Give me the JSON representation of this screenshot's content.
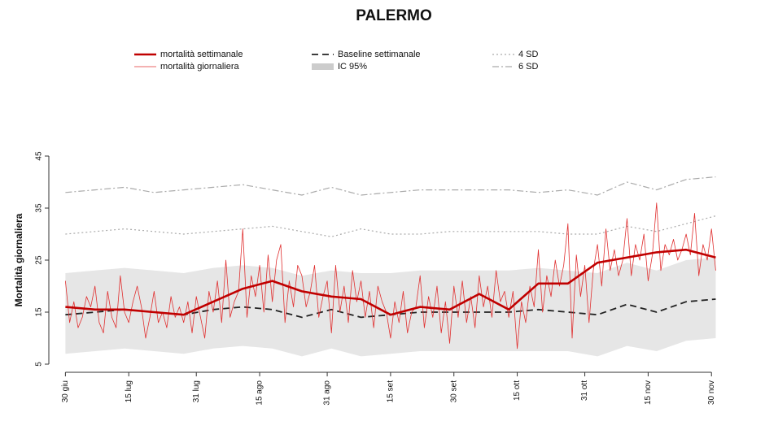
{
  "chart_data": {
    "type": "line",
    "title": "PALERMO",
    "y_label": "Mortalità giornaliera",
    "xlim": [
      -2,
      157
    ],
    "ylim": [
      5,
      45
    ],
    "xticks": [
      {
        "value": 0,
        "label": "30 giu"
      },
      {
        "value": 15,
        "label": "15 lug"
      },
      {
        "value": 31,
        "label": "31 lug"
      },
      {
        "value": 46,
        "label": "15 ago"
      },
      {
        "value": 62,
        "label": "31 ago"
      },
      {
        "value": 77,
        "label": "15 set"
      },
      {
        "value": 92,
        "label": "30 set"
      },
      {
        "value": 107,
        "label": "15 ott"
      },
      {
        "value": 123,
        "label": "31 ott"
      },
      {
        "value": 138,
        "label": "15 nov"
      },
      {
        "value": 153,
        "label": "30 nov"
      }
    ],
    "yticks": [
      5,
      15,
      25,
      35,
      45
    ],
    "series": [
      {
        "name": "mortalità settimanale",
        "color": "#c00000",
        "style": "solid",
        "width": 2.6,
        "x": [
          0,
          7,
          14,
          21,
          28,
          35,
          42,
          49,
          56,
          63,
          70,
          77,
          84,
          91,
          98,
          105,
          112,
          119,
          126,
          133,
          140,
          147,
          154
        ],
        "values": [
          16,
          15.5,
          15.5,
          15,
          14.5,
          17,
          19.5,
          21,
          19,
          18,
          17.5,
          14.5,
          16,
          15.5,
          18.5,
          15.5,
          20.5,
          20.5,
          24.5,
          25.5,
          26.5,
          27,
          25.5
        ]
      },
      {
        "name": "mortalità giornaliera",
        "color": "#e03030",
        "style": "solid",
        "width": 0.8,
        "x": [
          0,
          1,
          2,
          3,
          4,
          5,
          6,
          7,
          8,
          9,
          10,
          11,
          12,
          13,
          14,
          15,
          16,
          17,
          18,
          19,
          20,
          21,
          22,
          23,
          24,
          25,
          26,
          27,
          28,
          29,
          30,
          31,
          32,
          33,
          34,
          35,
          36,
          37,
          38,
          39,
          40,
          41,
          42,
          43,
          44,
          45,
          46,
          47,
          48,
          49,
          50,
          51,
          52,
          53,
          54,
          55,
          56,
          57,
          58,
          59,
          60,
          61,
          62,
          63,
          64,
          65,
          66,
          67,
          68,
          69,
          70,
          71,
          72,
          73,
          74,
          75,
          76,
          77,
          78,
          79,
          80,
          81,
          82,
          83,
          84,
          85,
          86,
          87,
          88,
          89,
          90,
          91,
          92,
          93,
          94,
          95,
          96,
          97,
          98,
          99,
          100,
          101,
          102,
          103,
          104,
          105,
          106,
          107,
          108,
          109,
          110,
          111,
          112,
          113,
          114,
          115,
          116,
          117,
          118,
          119,
          120,
          121,
          122,
          123,
          124,
          125,
          126,
          127,
          128,
          129,
          130,
          131,
          132,
          133,
          134,
          135,
          136,
          137,
          138,
          139,
          140,
          141,
          142,
          143,
          144,
          145,
          146,
          147,
          148,
          149,
          150,
          151,
          152,
          153,
          154
        ],
        "values": [
          21,
          13,
          17,
          12,
          14,
          18,
          16,
          20,
          13,
          11,
          19,
          14,
          12,
          22,
          15,
          13,
          17,
          20,
          16,
          10,
          14,
          19,
          13,
          15,
          12,
          18,
          14,
          16,
          13,
          17,
          11,
          18,
          14,
          10,
          19,
          15,
          21,
          13,
          25,
          14,
          17,
          19,
          31,
          14,
          22,
          18,
          24,
          15,
          26,
          17,
          25,
          28,
          13,
          21,
          16,
          24,
          22,
          16,
          19,
          24,
          14,
          18,
          21,
          11,
          24,
          15,
          20,
          13,
          23,
          17,
          21,
          14,
          19,
          12,
          20,
          17,
          15,
          10,
          17,
          13,
          19,
          11,
          15,
          16,
          22,
          12,
          18,
          14,
          20,
          11,
          17,
          9,
          20,
          14,
          21,
          13,
          18,
          12,
          22,
          16,
          20,
          14,
          23,
          17,
          19,
          14,
          19,
          8,
          17,
          13,
          20,
          16,
          27,
          15,
          22,
          18,
          25,
          20,
          24,
          32,
          10,
          26,
          18,
          24,
          13,
          23,
          28,
          20,
          31,
          23,
          27,
          22,
          25,
          33,
          22,
          28,
          25,
          30,
          21,
          26,
          36,
          23,
          28,
          26,
          29,
          25,
          27,
          30,
          26,
          34,
          22,
          28,
          25,
          31,
          23
        ]
      },
      {
        "name": "Baseline settimanale",
        "color": "#222222",
        "style": "dashed",
        "width": 1.8,
        "x": [
          0,
          7,
          14,
          21,
          28,
          35,
          42,
          49,
          56,
          63,
          70,
          77,
          84,
          91,
          98,
          105,
          112,
          119,
          126,
          133,
          140,
          147,
          154
        ],
        "values": [
          14.5,
          15,
          15.5,
          15,
          14.5,
          15.5,
          16,
          15.5,
          14,
          15.5,
          14,
          14.5,
          15,
          15,
          15,
          15,
          15.5,
          15,
          14.5,
          16.5,
          15,
          17,
          17.5
        ]
      },
      {
        "name": "IC 95%",
        "color": "#e6e6e6",
        "style": "band",
        "x": [
          0,
          7,
          14,
          21,
          28,
          35,
          42,
          49,
          56,
          63,
          70,
          77,
          84,
          91,
          98,
          105,
          112,
          119,
          126,
          133,
          140,
          147,
          154
        ],
        "upper": [
          22.5,
          23,
          23.5,
          23,
          22.5,
          23.5,
          24,
          23.5,
          22,
          23,
          22.5,
          22.5,
          23,
          23,
          23,
          23,
          23.5,
          23,
          22.5,
          24.5,
          23,
          25,
          25.5
        ],
        "lower": [
          7,
          7.5,
          8,
          7.5,
          7,
          8,
          8.5,
          8,
          6.5,
          8,
          6.5,
          7,
          7.5,
          7.5,
          7.5,
          7.5,
          7.5,
          7.5,
          6.5,
          8.5,
          7.5,
          9.5,
          10
        ]
      },
      {
        "name": "4 SD",
        "color": "#aaaaaa",
        "style": "dotted",
        "width": 1.2,
        "x": [
          0,
          7,
          14,
          21,
          28,
          35,
          42,
          49,
          56,
          63,
          70,
          77,
          84,
          91,
          98,
          105,
          112,
          119,
          126,
          133,
          140,
          147,
          154
        ],
        "values": [
          30,
          30.5,
          31,
          30.5,
          30,
          30.5,
          31,
          31.5,
          30.5,
          29.5,
          31,
          30,
          30,
          30.5,
          30.5,
          30.5,
          30.5,
          30,
          30,
          31.5,
          30.5,
          32,
          33.5
        ]
      },
      {
        "name": "6 SD",
        "color": "#aaaaaa",
        "style": "dotdash",
        "width": 1.2,
        "x": [
          0,
          7,
          14,
          21,
          28,
          35,
          42,
          49,
          56,
          63,
          70,
          77,
          84,
          91,
          98,
          105,
          112,
          119,
          126,
          133,
          140,
          147,
          154
        ],
        "values": [
          38,
          38.5,
          39,
          38,
          38.5,
          39,
          39.5,
          38.5,
          37.5,
          39,
          37.5,
          38,
          38.5,
          38.5,
          38.5,
          38.5,
          38,
          38.5,
          37.5,
          40,
          38.5,
          40.5,
          41
        ]
      }
    ]
  }
}
